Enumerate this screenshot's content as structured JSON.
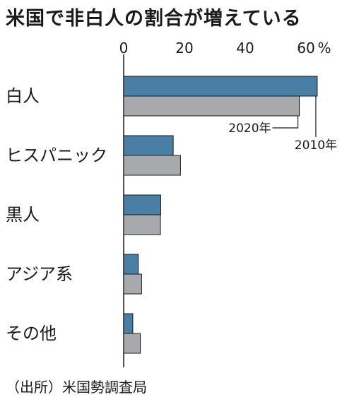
{
  "chart_data": {
    "type": "bar",
    "orientation": "horizontal",
    "title": "米国で非白人の割合が増えている",
    "unit": "%",
    "categories": [
      "白人",
      "ヒスパニック",
      "黒人",
      "アジア系",
      "その他"
    ],
    "series": [
      {
        "name": "2010年",
        "values": [
          63.7,
          16.3,
          12.2,
          4.8,
          3.0
        ],
        "color": "#4a7fa5"
      },
      {
        "name": "2020年",
        "values": [
          57.8,
          18.7,
          12.1,
          5.9,
          5.5
        ],
        "color": "#a8a9ad"
      }
    ],
    "xlim": [
      0,
      70
    ],
    "xticks": [
      0,
      20,
      40,
      60
    ],
    "xtick_labels": [
      "0",
      "20",
      "40",
      "60"
    ],
    "legend_placement": "callout-right",
    "grid": false
  },
  "source": "（出所）米国勢調査局"
}
